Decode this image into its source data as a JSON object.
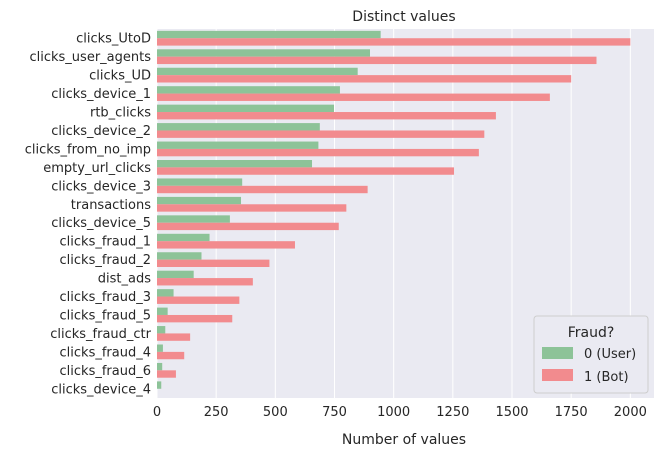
{
  "chart_data": {
    "type": "bar",
    "orientation": "horizontal",
    "title": "Distinct values",
    "xlabel": "Number of values",
    "ylabel": "",
    "xlim": [
      0,
      2100
    ],
    "xticks": [
      0,
      250,
      500,
      750,
      1000,
      1250,
      1500,
      1750,
      2000
    ],
    "grid": true,
    "legend": {
      "title": "Fraud?",
      "position": "bottom-right"
    },
    "categories": [
      "clicks_UtoD",
      "clicks_user_agents",
      "clicks_UD",
      "clicks_device_1",
      "rtb_clicks",
      "clicks_device_2",
      "clicks_from_no_imp",
      "empty_url_clicks",
      "clicks_device_3",
      "transactions",
      "clicks_device_5",
      "clicks_fraud_1",
      "clicks_fraud_2",
      "dist_ads",
      "clicks_fraud_3",
      "clicks_fraud_5",
      "clicks_fraud_ctr",
      "clicks_fraud_4",
      "clicks_fraud_6",
      "clicks_device_4"
    ],
    "series": [
      {
        "name": "0 (User)",
        "color": "#8dc398",
        "values": [
          945,
          900,
          848,
          773,
          748,
          688,
          682,
          655,
          360,
          355,
          308,
          222,
          188,
          155,
          70,
          45,
          35,
          25,
          22,
          18
        ]
      },
      {
        "name": "1 (Bot)",
        "color": "#f28b8e",
        "values": [
          2000,
          1857,
          1750,
          1660,
          1432,
          1383,
          1360,
          1255,
          890,
          800,
          768,
          583,
          475,
          405,
          348,
          318,
          140,
          115,
          80,
          0
        ]
      }
    ]
  }
}
